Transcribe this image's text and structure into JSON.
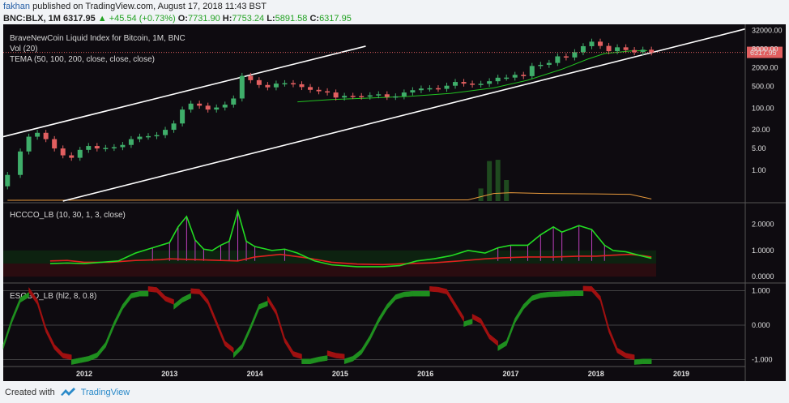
{
  "header": {
    "author": "fakhan",
    "published_text": "published on TradingView.com, August 17, 2018 11:43 BST",
    "symbol": "BNC:BLX, 1M",
    "last": "6317.95",
    "change": "▲ +45.54 (+0.73%)",
    "open_label": "O:",
    "open": "7731.90",
    "high_label": "H:",
    "high": "7753.24",
    "low_label": "L:",
    "low": "5891.58",
    "close_label": "C:",
    "close": "6317.95"
  },
  "footer": {
    "created_with": "Created with",
    "brand": "TradingView"
  },
  "colors": {
    "background": "#0e0b10",
    "up_candle": "#3fae6a",
    "down_candle": "#e25f60",
    "trendline": "#ffffff",
    "tema": "#21c321",
    "volume_ma": "#e89a3c",
    "hccco_green": "#22dd22",
    "hccco_red": "#e02020",
    "hist_purple": "#c040c0",
    "escgo_green": "#1f8f1f",
    "escgo_red": "#a01010",
    "price_tag": "#e25f60"
  },
  "chart_data": [
    {
      "type": "candlestick",
      "panel": "price",
      "legend": [
        "BraveNewCoin Liquid Index for Bitcoin, 1M, BNC",
        "Vol (20)",
        "TEMA (50, 100, 200, close, close, close)"
      ],
      "y_scale": "log",
      "y_ticks": [
        "32000.00",
        "8000.00",
        "2000.00",
        "500.00",
        "100.00",
        "20.00",
        "5.00",
        "1.00"
      ],
      "y_tick_values": [
        32000,
        8000,
        2000,
        500,
        100,
        20,
        5,
        1
      ],
      "last_price_label": "6317.95",
      "last_price": 6317.95,
      "x_ticks": [
        "2012",
        "2013",
        "2014",
        "2015",
        "2016",
        "2017",
        "2018",
        "2019"
      ],
      "x_range": [
        2011.05,
        2019.75
      ],
      "candles": [
        [
          2011.1,
          0.3,
          0.7
        ],
        [
          2011.25,
          0.7,
          4
        ],
        [
          2011.35,
          4,
          12
        ],
        [
          2011.45,
          12,
          16
        ],
        [
          2011.55,
          16,
          10
        ],
        [
          2011.65,
          10,
          5
        ],
        [
          2011.75,
          5,
          3
        ],
        [
          2011.85,
          3,
          2.5
        ],
        [
          2011.95,
          2.5,
          4.5
        ],
        [
          2012.05,
          4.5,
          6
        ],
        [
          2012.15,
          6,
          5
        ],
        [
          2012.25,
          5,
          5.2
        ],
        [
          2012.35,
          5.2,
          5.5
        ],
        [
          2012.45,
          5.5,
          6.5
        ],
        [
          2012.55,
          6.5,
          10
        ],
        [
          2012.65,
          10,
          12
        ],
        [
          2012.75,
          12,
          12.5
        ],
        [
          2012.85,
          12.5,
          13.5
        ],
        [
          2012.95,
          13.5,
          20
        ],
        [
          2013.05,
          20,
          32
        ],
        [
          2013.15,
          32,
          90
        ],
        [
          2013.25,
          90,
          140
        ],
        [
          2013.35,
          140,
          120
        ],
        [
          2013.45,
          120,
          90
        ],
        [
          2013.55,
          90,
          105
        ],
        [
          2013.65,
          105,
          130
        ],
        [
          2013.75,
          130,
          205
        ],
        [
          2013.85,
          205,
          1100
        ],
        [
          2013.95,
          1100,
          800
        ],
        [
          2014.05,
          800,
          560
        ],
        [
          2014.15,
          560,
          470
        ],
        [
          2014.25,
          470,
          620
        ],
        [
          2014.35,
          620,
          640
        ],
        [
          2014.45,
          640,
          590
        ],
        [
          2014.55,
          590,
          480
        ],
        [
          2014.65,
          480,
          390
        ],
        [
          2014.75,
          390,
          350
        ],
        [
          2014.85,
          350,
          320
        ],
        [
          2014.95,
          320,
          220
        ],
        [
          2015.05,
          220,
          250
        ],
        [
          2015.15,
          250,
          245
        ],
        [
          2015.25,
          245,
          235
        ],
        [
          2015.35,
          235,
          260
        ],
        [
          2015.45,
          260,
          280
        ],
        [
          2015.55,
          280,
          230
        ],
        [
          2015.65,
          230,
          240
        ],
        [
          2015.75,
          240,
          320
        ],
        [
          2015.85,
          320,
          380
        ],
        [
          2015.95,
          380,
          430
        ],
        [
          2016.05,
          430,
          440
        ],
        [
          2016.15,
          440,
          420
        ],
        [
          2016.25,
          420,
          530
        ],
        [
          2016.35,
          530,
          700
        ],
        [
          2016.45,
          700,
          620
        ],
        [
          2016.55,
          620,
          575
        ],
        [
          2016.65,
          575,
          610
        ],
        [
          2016.75,
          610,
          740
        ],
        [
          2016.85,
          740,
          960
        ],
        [
          2016.95,
          960,
          970
        ],
        [
          2017.05,
          970,
          1190
        ],
        [
          2017.15,
          1190,
          1080
        ],
        [
          2017.25,
          1080,
          2300
        ],
        [
          2017.35,
          2300,
          2500
        ],
        [
          2017.45,
          2500,
          2880
        ],
        [
          2017.55,
          2880,
          4700
        ],
        [
          2017.65,
          4700,
          4330
        ],
        [
          2017.75,
          4330,
          6400
        ],
        [
          2017.85,
          6400,
          10000
        ],
        [
          2017.95,
          10000,
          14000
        ],
        [
          2018.05,
          14000,
          10200
        ],
        [
          2018.15,
          10200,
          6900
        ],
        [
          2018.25,
          6900,
          9200
        ],
        [
          2018.35,
          9200,
          7500
        ],
        [
          2018.45,
          7500,
          6400
        ],
        [
          2018.55,
          6400,
          7700
        ],
        [
          2018.65,
          7700,
          6317.95
        ]
      ],
      "tema": [
        [
          2014.5,
          160
        ],
        [
          2014.9,
          190
        ],
        [
          2015.3,
          210
        ],
        [
          2015.8,
          240
        ],
        [
          2016.3,
          300
        ],
        [
          2016.8,
          450
        ],
        [
          2017.2,
          800
        ],
        [
          2017.6,
          1800
        ],
        [
          2017.9,
          3800
        ],
        [
          2018.1,
          5800
        ],
        [
          2018.4,
          7000
        ],
        [
          2018.6,
          7200
        ]
      ],
      "trendlines": [
        {
          "x1": 2011.05,
          "y1": 12,
          "x2": 2015.3,
          "y2": 10000
        },
        {
          "x1": 2011.75,
          "y1": 0.1,
          "x2": 2019.75,
          "y2": 36000
        }
      ],
      "volume_spikes": [
        [
          2016.65,
          0.3
        ],
        [
          2016.75,
          0.95
        ],
        [
          2016.85,
          0.98
        ],
        [
          2016.95,
          0.5
        ]
      ],
      "volume_ma": [
        [
          2011.1,
          0.02
        ],
        [
          2016.5,
          0.03
        ],
        [
          2016.8,
          0.18
        ],
        [
          2017.0,
          0.2
        ],
        [
          2017.4,
          0.18
        ],
        [
          2018.0,
          0.17
        ],
        [
          2018.4,
          0.16
        ],
        [
          2018.65,
          0.05
        ]
      ]
    },
    {
      "type": "line",
      "panel": "oscillator",
      "legend": "HCCCO_LB (10, 30, 1, 3, close)",
      "y_ticks": [
        "2.0000",
        "1.0000",
        "0.0000"
      ],
      "y_tick_values": [
        2,
        1,
        0
      ],
      "zones": [
        [
          0.5,
          1.0
        ],
        [
          0.0,
          0.5
        ]
      ],
      "fast_line": [
        [
          2011.6,
          0.5
        ],
        [
          2011.8,
          0.52
        ],
        [
          2012.0,
          0.5
        ],
        [
          2012.2,
          0.55
        ],
        [
          2012.4,
          0.6
        ],
        [
          2012.6,
          0.9
        ],
        [
          2012.8,
          1.1
        ],
        [
          2013.0,
          1.3
        ],
        [
          2013.1,
          1.9
        ],
        [
          2013.2,
          2.3
        ],
        [
          2013.3,
          1.4
        ],
        [
          2013.4,
          1.05
        ],
        [
          2013.5,
          1.0
        ],
        [
          2013.6,
          1.2
        ],
        [
          2013.7,
          1.35
        ],
        [
          2013.8,
          2.5
        ],
        [
          2013.9,
          1.35
        ],
        [
          2014.0,
          1.15
        ],
        [
          2014.2,
          1.0
        ],
        [
          2014.35,
          1.05
        ],
        [
          2014.5,
          0.9
        ],
        [
          2014.7,
          0.6
        ],
        [
          2014.9,
          0.45
        ],
        [
          2015.2,
          0.38
        ],
        [
          2015.5,
          0.38
        ],
        [
          2015.7,
          0.42
        ],
        [
          2015.9,
          0.6
        ],
        [
          2016.1,
          0.68
        ],
        [
          2016.3,
          0.8
        ],
        [
          2016.5,
          1.0
        ],
        [
          2016.7,
          0.9
        ],
        [
          2016.85,
          1.1
        ],
        [
          2017.0,
          1.2
        ],
        [
          2017.2,
          1.2
        ],
        [
          2017.35,
          1.6
        ],
        [
          2017.5,
          1.9
        ],
        [
          2017.6,
          1.7
        ],
        [
          2017.8,
          1.95
        ],
        [
          2017.95,
          1.8
        ],
        [
          2018.1,
          1.2
        ],
        [
          2018.2,
          1.0
        ],
        [
          2018.35,
          0.95
        ],
        [
          2018.5,
          0.82
        ],
        [
          2018.65,
          0.7
        ]
      ],
      "slow_line": [
        [
          2011.6,
          0.6
        ],
        [
          2011.8,
          0.62
        ],
        [
          2012.0,
          0.55
        ],
        [
          2012.3,
          0.55
        ],
        [
          2012.6,
          0.62
        ],
        [
          2012.9,
          0.65
        ],
        [
          2013.0,
          0.68
        ],
        [
          2013.3,
          0.65
        ],
        [
          2013.6,
          0.62
        ],
        [
          2013.8,
          0.6
        ],
        [
          2014.0,
          0.75
        ],
        [
          2014.3,
          0.85
        ],
        [
          2014.6,
          0.72
        ],
        [
          2014.9,
          0.55
        ],
        [
          2015.2,
          0.48
        ],
        [
          2015.5,
          0.46
        ],
        [
          2015.8,
          0.5
        ],
        [
          2016.1,
          0.53
        ],
        [
          2016.4,
          0.6
        ],
        [
          2016.7,
          0.68
        ],
        [
          2016.9,
          0.72
        ],
        [
          2017.2,
          0.75
        ],
        [
          2017.5,
          0.75
        ],
        [
          2017.8,
          0.78
        ],
        [
          2018.0,
          0.78
        ],
        [
          2018.2,
          0.82
        ],
        [
          2018.4,
          0.85
        ],
        [
          2018.55,
          0.8
        ],
        [
          2018.65,
          0.75
        ]
      ],
      "histogram_from": 0.6
    },
    {
      "type": "area",
      "panel": "escgo",
      "legend": "ESCGO_LB (hl2, 8, 0.8)",
      "y_ticks": [
        "1.000",
        "0.000",
        "-1.000"
      ],
      "y_tick_values": [
        1,
        0,
        -1
      ],
      "line": [
        [
          2011.05,
          -0.55
        ],
        [
          2011.15,
          0.2
        ],
        [
          2011.25,
          0.8
        ],
        [
          2011.35,
          0.95
        ],
        [
          2011.45,
          0.6
        ],
        [
          2011.55,
          -0.2
        ],
        [
          2011.65,
          -0.7
        ],
        [
          2011.75,
          -0.95
        ],
        [
          2011.85,
          -1.0
        ],
        [
          2011.95,
          -0.95
        ],
        [
          2012.05,
          -0.9
        ],
        [
          2012.15,
          -0.8
        ],
        [
          2012.25,
          -0.5
        ],
        [
          2012.35,
          0.1
        ],
        [
          2012.45,
          0.6
        ],
        [
          2012.55,
          0.92
        ],
        [
          2012.65,
          0.98
        ],
        [
          2012.75,
          0.98
        ],
        [
          2012.85,
          0.95
        ],
        [
          2012.95,
          0.7
        ],
        [
          2013.05,
          0.6
        ],
        [
          2013.15,
          0.8
        ],
        [
          2013.25,
          0.92
        ],
        [
          2013.35,
          0.9
        ],
        [
          2013.45,
          0.6
        ],
        [
          2013.55,
          0.0
        ],
        [
          2013.65,
          -0.6
        ],
        [
          2013.75,
          -0.8
        ],
        [
          2013.85,
          -0.55
        ],
        [
          2013.95,
          0.0
        ],
        [
          2014.05,
          0.6
        ],
        [
          2014.15,
          0.7
        ],
        [
          2014.25,
          0.3
        ],
        [
          2014.35,
          -0.5
        ],
        [
          2014.45,
          -0.9
        ],
        [
          2014.55,
          -0.98
        ],
        [
          2014.65,
          -0.98
        ],
        [
          2014.75,
          -0.92
        ],
        [
          2014.85,
          -0.88
        ],
        [
          2014.95,
          -0.95
        ],
        [
          2015.05,
          -0.98
        ],
        [
          2015.15,
          -0.9
        ],
        [
          2015.25,
          -0.7
        ],
        [
          2015.35,
          -0.3
        ],
        [
          2015.45,
          0.2
        ],
        [
          2015.55,
          0.6
        ],
        [
          2015.65,
          0.88
        ],
        [
          2015.75,
          0.96
        ],
        [
          2015.85,
          0.98
        ],
        [
          2015.95,
          0.98
        ],
        [
          2016.05,
          0.98
        ],
        [
          2016.15,
          0.96
        ],
        [
          2016.25,
          0.9
        ],
        [
          2016.35,
          0.5
        ],
        [
          2016.45,
          0.1
        ],
        [
          2016.55,
          0.18
        ],
        [
          2016.65,
          0.05
        ],
        [
          2016.75,
          -0.4
        ],
        [
          2016.85,
          -0.6
        ],
        [
          2016.95,
          -0.45
        ],
        [
          2017.05,
          0.2
        ],
        [
          2017.15,
          0.6
        ],
        [
          2017.25,
          0.85
        ],
        [
          2017.35,
          0.93
        ],
        [
          2017.45,
          0.96
        ],
        [
          2017.55,
          0.97
        ],
        [
          2017.65,
          0.98
        ],
        [
          2017.75,
          0.99
        ],
        [
          2017.85,
          0.99
        ],
        [
          2017.95,
          0.98
        ],
        [
          2018.05,
          0.7
        ],
        [
          2018.15,
          -0.2
        ],
        [
          2018.25,
          -0.8
        ],
        [
          2018.35,
          -0.95
        ],
        [
          2018.45,
          -1.0
        ],
        [
          2018.55,
          -0.98
        ],
        [
          2018.65,
          -0.98
        ]
      ]
    }
  ]
}
